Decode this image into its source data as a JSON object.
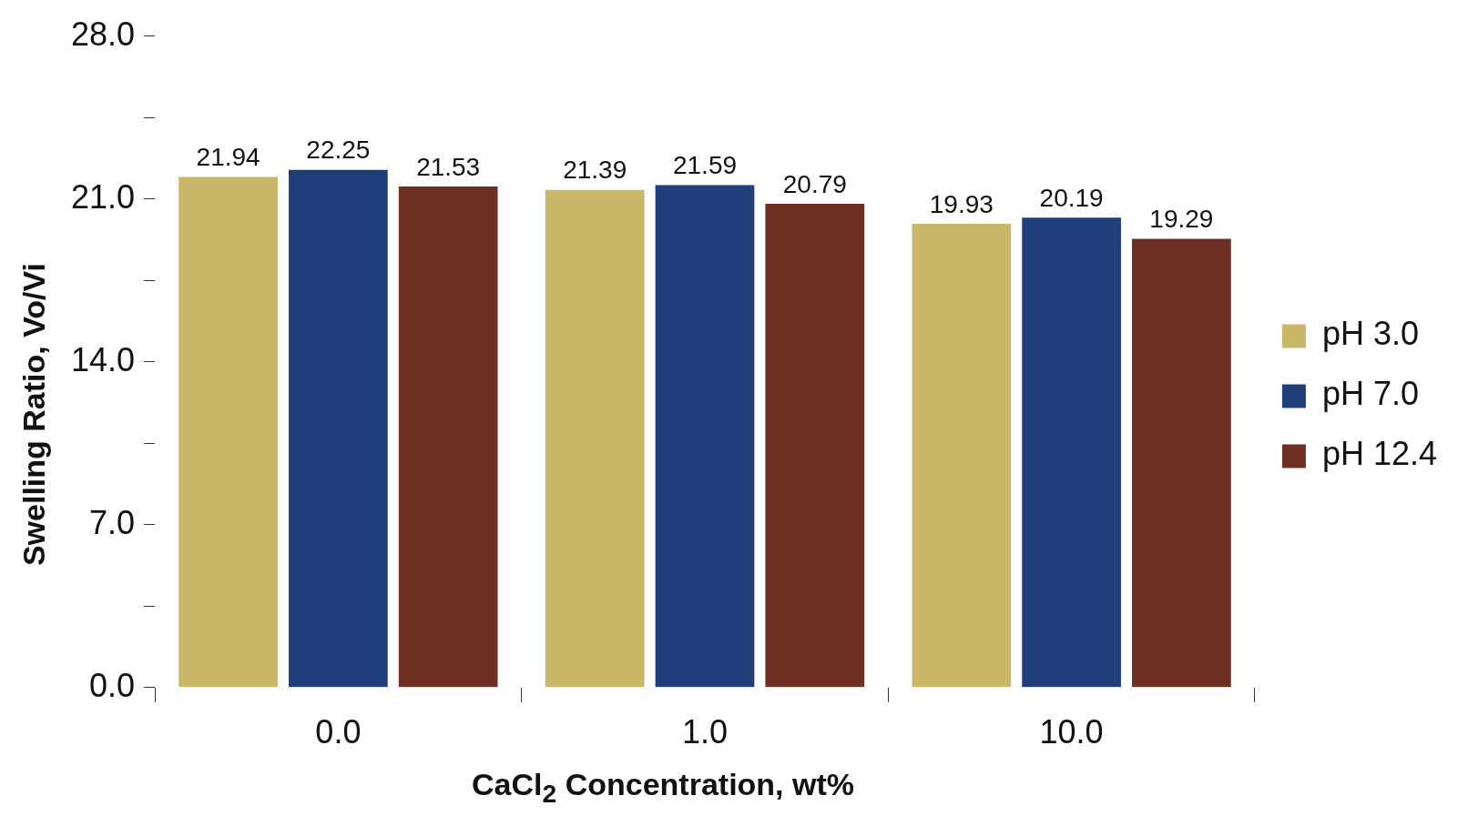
{
  "chart_data": {
    "type": "bar",
    "xlabel": "CaCl$_{2}$ Concentration, wt%",
    "ylabel": "Swelling Ratio, Vo/Vi",
    "categories": [
      "0.0",
      "1.0",
      "10.0"
    ],
    "series": [
      {
        "name": "pH 3.0",
        "color": "#c9b76a",
        "values": [
          21.94,
          21.39,
          19.93
        ]
      },
      {
        "name": "pH 7.0",
        "color": "#1f3f7a",
        "values": [
          22.25,
          21.59,
          20.19
        ]
      },
      {
        "name": "pH 12.4",
        "color": "#6e3022",
        "values": [
          21.53,
          20.79,
          19.29
        ]
      }
    ],
    "ylim": [
      0,
      28
    ],
    "yticks": [
      {
        "value": 0,
        "label": "0.0"
      },
      {
        "value": 3.5,
        "label": null
      },
      {
        "value": 7,
        "label": "7.0"
      },
      {
        "value": 10.5,
        "label": null
      },
      {
        "value": 14,
        "label": "14.0"
      },
      {
        "value": 17.5,
        "label": null
      },
      {
        "value": 21,
        "label": "21.0"
      },
      {
        "value": 24.5,
        "label": null
      },
      {
        "value": 28,
        "label": "28.0"
      }
    ],
    "grid": false,
    "legend": "right",
    "data_labels": true
  }
}
